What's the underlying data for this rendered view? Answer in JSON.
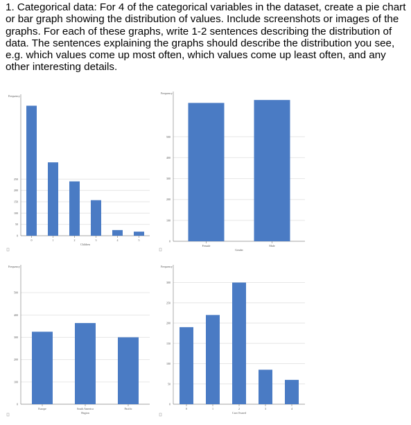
{
  "question": {
    "text": "1.  Categorical data:  For 4 of the categorical variables in the dataset, create a pie chart or bar graph showing the distribution of values.  Include screenshots or images of the graphs.  For each of these graphs, write 1-2 sentences describing the distribution of data.  The sentences explaining the graphs should describe the distribution you see, e.g. which values come up most often, which values come up least often, and any other interesting details."
  },
  "colors": {
    "bar": "#4a7bc4",
    "grid": "#e6e6e6",
    "axis": "#888888",
    "text": "#555555"
  },
  "chart_data": [
    {
      "type": "bar",
      "ylabel": "Frequency",
      "xlabel": "Children",
      "categories": [
        "0",
        "1",
        "2",
        "3",
        "4",
        "5"
      ],
      "values": [
        574,
        324,
        240,
        157,
        25,
        18
      ],
      "yticks": [
        50,
        100,
        150,
        200,
        250
      ],
      "ylim": [
        0,
        600
      ],
      "grid": true
    },
    {
      "type": "bar",
      "ylabel": "Frequency",
      "xlabel": "Gender",
      "categories": [
        "Female",
        "Male"
      ],
      "values": [
        662,
        676
      ],
      "yticks": [
        100,
        200,
        300,
        400,
        500
      ],
      "ylim": [
        0,
        690
      ],
      "grid": true
    },
    {
      "type": "bar",
      "ylabel": "Frequency",
      "xlabel": "Region",
      "categories": [
        "Europe",
        "South America",
        "Pacific"
      ],
      "values": [
        325,
        364,
        300
      ],
      "yticks": [
        100,
        200,
        300,
        400,
        500
      ],
      "ylim": [
        0,
        600
      ],
      "grid": true
    },
    {
      "type": "bar",
      "ylabel": "Frequency",
      "xlabel": "Cars Owned",
      "categories": [
        "0",
        "1",
        "2",
        "3",
        "4"
      ],
      "values": [
        190,
        220,
        300,
        85,
        60
      ],
      "yticks": [
        50,
        100,
        150,
        200,
        250,
        300
      ],
      "ylim": [
        0,
        330
      ],
      "grid": true
    }
  ]
}
